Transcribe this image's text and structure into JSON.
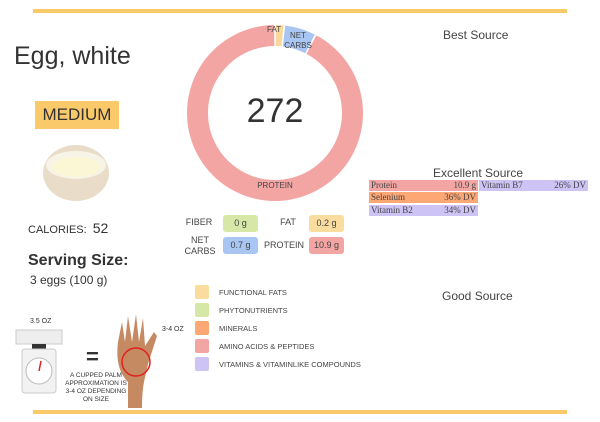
{
  "food": {
    "name": "Egg, white",
    "size": "MEDIUM",
    "calories_label": "CALORIES:",
    "calories": "52",
    "serving_label": "Serving Size:",
    "serving": "3 eggs (100 g)"
  },
  "chart_data": {
    "type": "pie",
    "variant": "donut",
    "center_label": "272",
    "categories": [
      "FAT",
      "NET CARBS",
      "PROTEIN"
    ],
    "values": [
      0.2,
      0.7,
      10.9
    ],
    "colors": [
      "#f9d89a",
      "#a9c6f2",
      "#f3a5a3"
    ]
  },
  "macros": [
    {
      "label": "FIBER",
      "value": "0 g",
      "color": "#d5e8a8"
    },
    {
      "label": "FAT",
      "value": "0.2 g",
      "color": "#f9dc9e"
    },
    {
      "label": "NET CARBS",
      "value": "0.7 g",
      "color": "#a9c6f2"
    },
    {
      "label": "PROTEIN",
      "value": "10.9 g",
      "color": "#f3a5a3"
    }
  ],
  "legend": [
    {
      "label": "FUNCTIONAL  FATS",
      "color": "#f9dc9e"
    },
    {
      "label": "PHYTONUTRIENTS",
      "color": "#d5e8a8"
    },
    {
      "label": "MINERALS",
      "color": "#fda774"
    },
    {
      "label": "AMINO ACIDS & PEPTIDES",
      "color": "#f3a5a3"
    },
    {
      "label": "VITAMINS & VITAMINLIKE COMPOUNDS",
      "color": "#cdc3f5"
    }
  ],
  "sources": {
    "best_title": "Best Source",
    "excellent_title": "Excellent Source",
    "good_title": "Good Source",
    "excellent": [
      {
        "name": "Protein",
        "value": "10.9 g",
        "color": "#f3a5a3"
      },
      {
        "name": "Vitamin B7",
        "value": "26% DV",
        "color": "#cdc3f5"
      },
      {
        "name": "Selenium",
        "value": "36% DV",
        "color": "#fda774"
      },
      {
        "name": "Vitamin B2",
        "value": "34% DV",
        "color": "#cdc3f5"
      }
    ]
  },
  "portion": {
    "scale_label": "3.5 OZ",
    "equals": "=",
    "caption": "A CUPPED PALM APPROXIMATION IS 3-4 OZ DEPENDING ON SIZE",
    "hand_label": "3-4 OZ"
  }
}
